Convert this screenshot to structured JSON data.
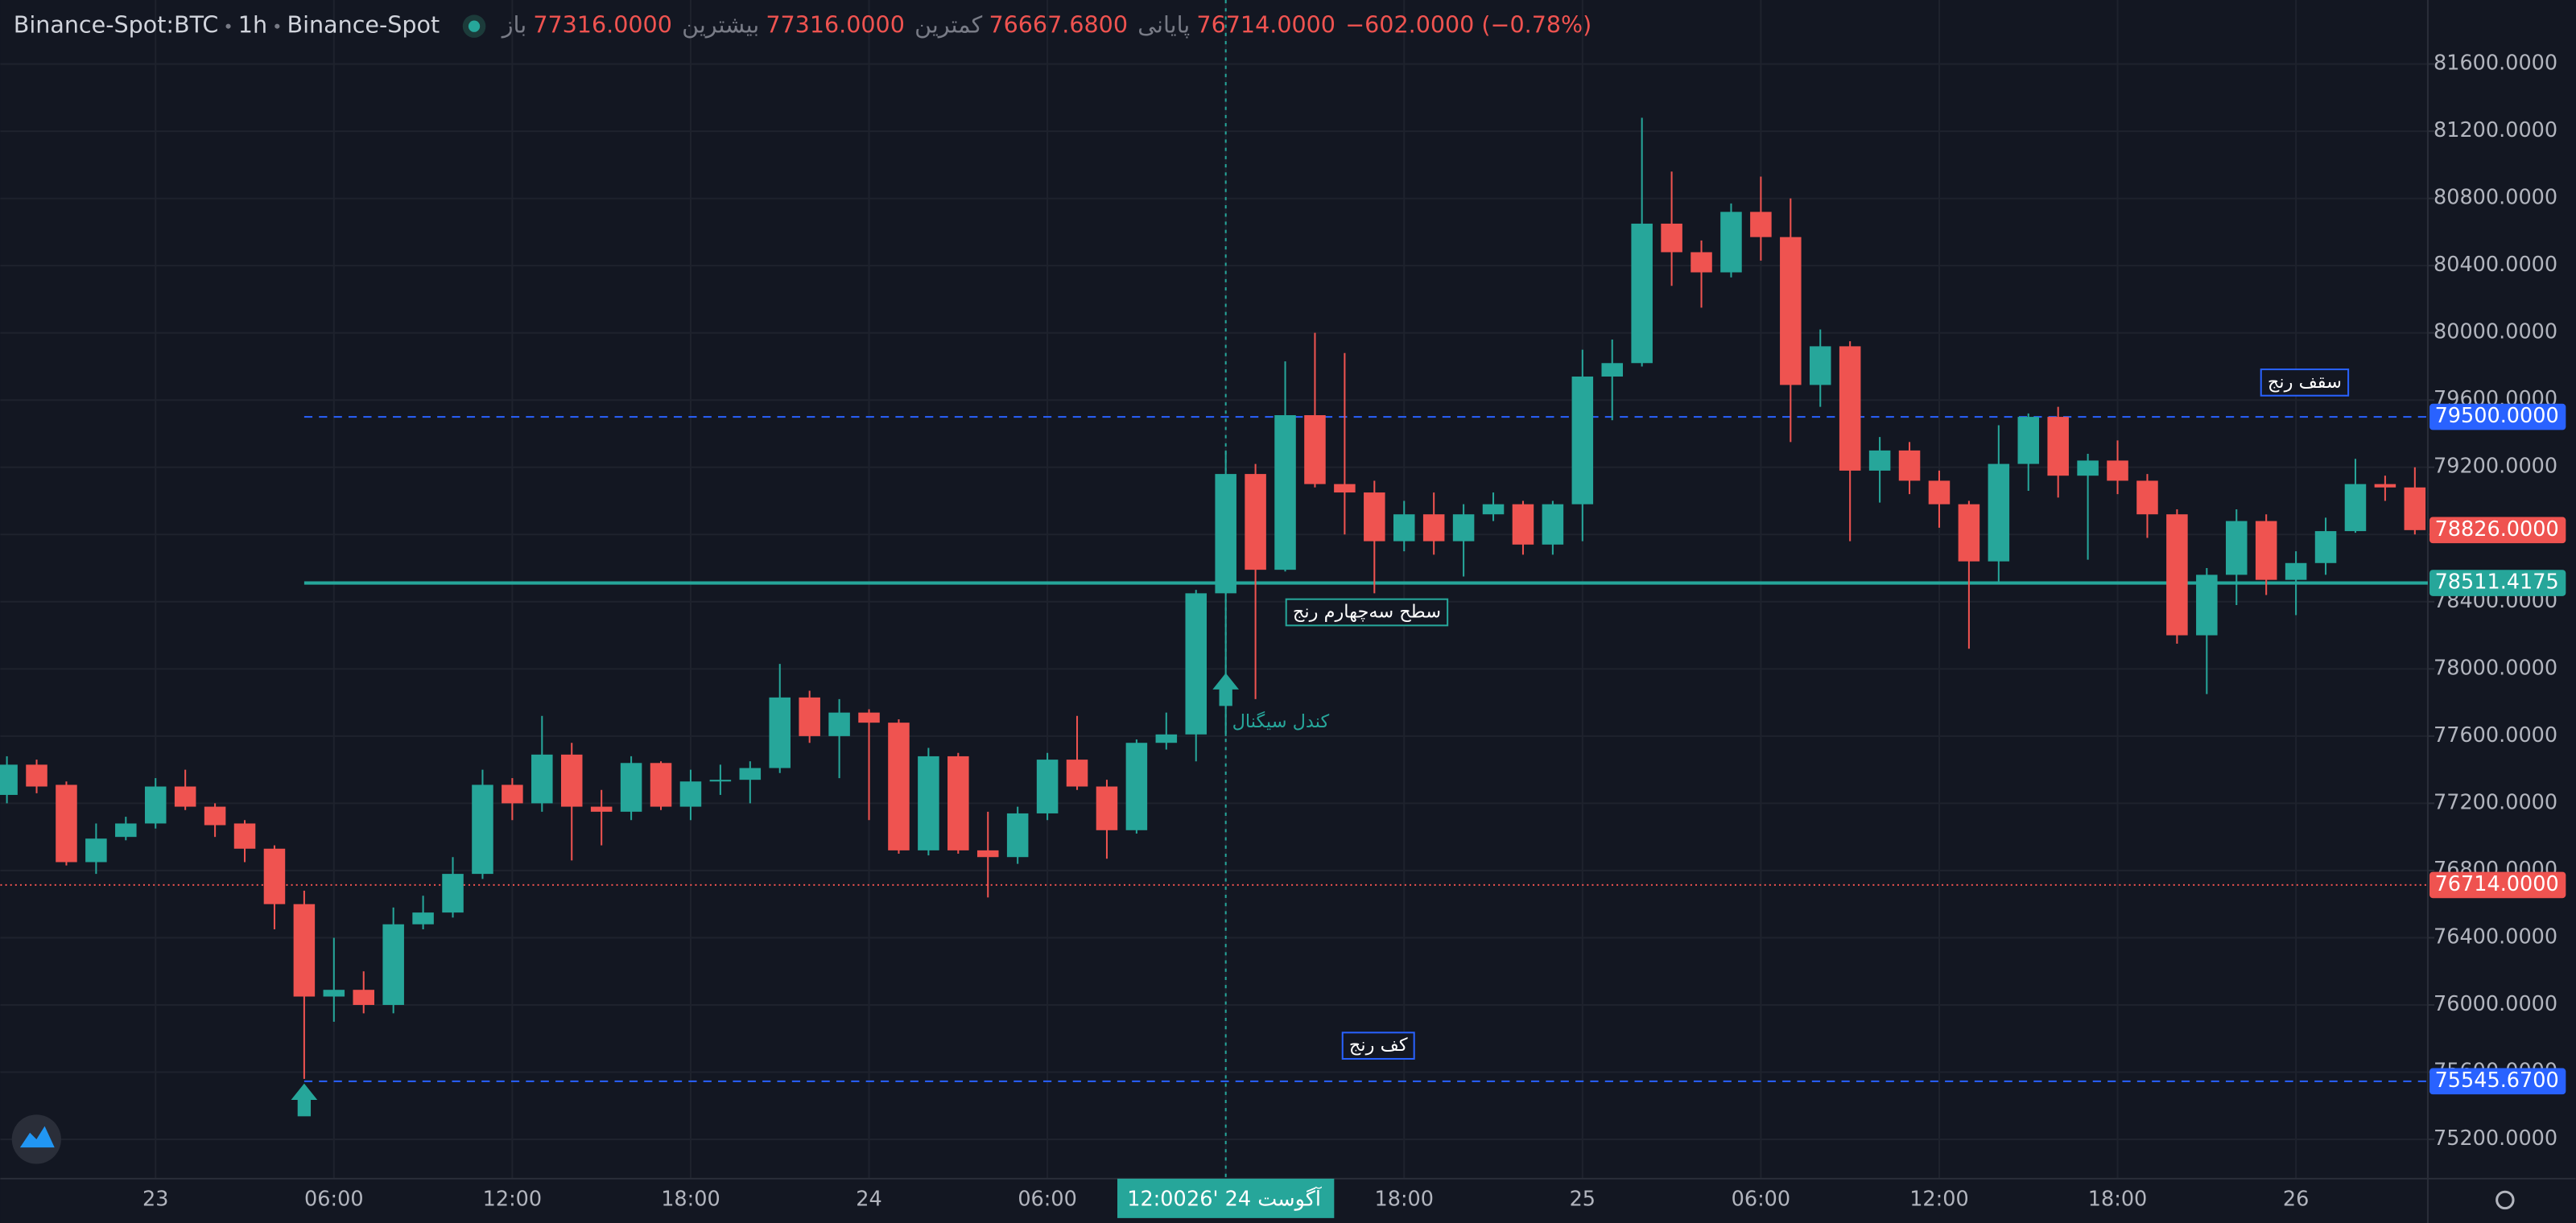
{
  "header": {
    "symbol": "Binance-Spot:BTC",
    "interval": "1h",
    "exchange": "Binance-Spot",
    "ohlc": [
      {
        "label": "باز",
        "value": "77316.0000"
      },
      {
        "label": "بیشترین",
        "value": "77316.0000"
      },
      {
        "label": "کمترین",
        "value": "76667.6800"
      },
      {
        "label": "پایانی",
        "value": "76714.0000"
      }
    ],
    "change": "−602.0000 (−0.78%)"
  },
  "chart_data": {
    "type": "candlestick",
    "up_color": "#26a69a",
    "down_color": "#ef5350",
    "grid": true,
    "categories": [
      null,
      null,
      null,
      null,
      null,
      "23",
      null,
      null,
      null,
      null,
      null,
      "06:00",
      null,
      null,
      null,
      null,
      null,
      "12:00",
      null,
      null,
      null,
      null,
      null,
      "18:00",
      null,
      null,
      null,
      null,
      null,
      "24",
      null,
      null,
      null,
      null,
      null,
      "06:00",
      null,
      null,
      null,
      null,
      null,
      "12:00",
      null,
      null,
      null,
      null,
      null,
      "18:00",
      null,
      null,
      null,
      null,
      null,
      "25",
      null,
      null,
      null,
      null,
      null,
      "06:00",
      null,
      null,
      null,
      null,
      null,
      "12:00",
      null,
      null,
      null,
      null,
      null,
      "18:00",
      null,
      null,
      null,
      null,
      null,
      "26",
      null,
      null,
      null,
      null
    ],
    "open": [
      77250,
      77430,
      77310,
      76850,
      77000,
      77080,
      77300,
      77180,
      77080,
      76930,
      76600,
      76050,
      76090,
      76000,
      76480,
      76550,
      76780,
      77310,
      77200,
      77490,
      77180,
      77150,
      77440,
      77180,
      77330,
      77340,
      77410,
      77830,
      77600,
      77740,
      77680,
      76920,
      77480,
      76920,
      76880,
      77140,
      77460,
      77300,
      77040,
      77560,
      77610,
      78450,
      79160,
      78590,
      79510,
      79100,
      79050,
      78760,
      78920,
      78760,
      78920,
      78980,
      78740,
      78980,
      79740,
      79820,
      80650,
      80480,
      80360,
      80720,
      80570,
      79690,
      79920,
      79180,
      79300,
      79120,
      78980,
      78640,
      79220,
      79500,
      79150,
      79240,
      79120,
      78920,
      78200,
      78560,
      78880,
      78530,
      78630,
      78820,
      79100,
      79080
    ],
    "high": [
      77480,
      77460,
      77330,
      77080,
      77120,
      77350,
      77400,
      77200,
      77100,
      76950,
      76680,
      76400,
      76200,
      76580,
      76650,
      76880,
      77400,
      77350,
      77720,
      77560,
      77280,
      77480,
      77450,
      77400,
      77430,
      77450,
      78030,
      77870,
      77820,
      77760,
      77700,
      77530,
      77500,
      77150,
      77180,
      77500,
      77720,
      77340,
      77580,
      77740,
      78470,
      79300,
      79220,
      79830,
      80000,
      79880,
      79120,
      79000,
      79050,
      78980,
      79050,
      79000,
      79000,
      79900,
      79960,
      81280,
      80960,
      80550,
      80770,
      80930,
      80800,
      80020,
      79950,
      79380,
      79350,
      79180,
      79000,
      79450,
      79520,
      79560,
      79280,
      79360,
      79160,
      78950,
      78600,
      78950,
      78920,
      78700,
      78900,
      79250,
      79150,
      79200
    ],
    "low": [
      77200,
      77260,
      76830,
      76780,
      76980,
      77050,
      77160,
      77000,
      76850,
      76450,
      75560,
      75900,
      75950,
      75950,
      76450,
      76520,
      76750,
      77100,
      77150,
      76860,
      76950,
      77100,
      77160,
      77100,
      77250,
      77200,
      77380,
      77560,
      77350,
      77100,
      76900,
      76890,
      76900,
      76640,
      76840,
      77100,
      77280,
      76870,
      77020,
      77520,
      77450,
      77600,
      77820,
      78580,
      79080,
      78800,
      78450,
      78700,
      78680,
      78550,
      78880,
      78680,
      78680,
      78760,
      79480,
      79800,
      80280,
      80150,
      80330,
      80430,
      79350,
      79560,
      78760,
      78990,
      79040,
      78840,
      78120,
      78520,
      79060,
      79020,
      78650,
      79040,
      78780,
      78150,
      77850,
      78380,
      78440,
      78320,
      78560,
      78810,
      79000,
      78800
    ],
    "close": [
      77430,
      77300,
      76850,
      76990,
      77080,
      77300,
      77180,
      77070,
      76930,
      76600,
      76050,
      76090,
      76000,
      76480,
      76550,
      76780,
      77310,
      77200,
      77490,
      77180,
      77150,
      77440,
      77180,
      77330,
      77340,
      77410,
      77830,
      77600,
      77740,
      77680,
      76920,
      77480,
      76920,
      76880,
      77140,
      77460,
      77300,
      77040,
      77560,
      77610,
      78450,
      79160,
      78590,
      79510,
      79100,
      79050,
      78760,
      78920,
      78760,
      78920,
      78980,
      78740,
      78980,
      79740,
      79820,
      80650,
      80480,
      80360,
      80720,
      80570,
      79690,
      79920,
      79180,
      79300,
      79120,
      78980,
      78640,
      79220,
      79500,
      79150,
      79240,
      79120,
      78920,
      78200,
      78560,
      78880,
      78530,
      78630,
      78820,
      79100,
      79080,
      78826
    ],
    "ylim": [
      74966,
      81981
    ],
    "yticks": [
      {
        "value": 75200,
        "label": "75200.0000"
      },
      {
        "value": 75600,
        "label": "75600.0000"
      },
      {
        "value": 76000,
        "label": "76000.0000"
      },
      {
        "value": 76400,
        "label": "76400.0000"
      },
      {
        "value": 76800,
        "label": "76800.0000"
      },
      {
        "value": 77200,
        "label": "77200.0000"
      },
      {
        "value": 77600,
        "label": "77600.0000"
      },
      {
        "value": 78000,
        "label": "78000.0000"
      },
      {
        "value": 78400,
        "label": "78400.0000"
      },
      {
        "value": 78800,
        "label": "78800.0000"
      },
      {
        "value": 79200,
        "label": "79200.0000"
      },
      {
        "value": 79600,
        "label": "79600.0000"
      },
      {
        "value": 80000,
        "label": "80000.0000"
      },
      {
        "value": 80400,
        "label": "80400.0000"
      },
      {
        "value": 80800,
        "label": "80800.0000"
      },
      {
        "value": 81200,
        "label": "81200.0000"
      },
      {
        "value": 81600,
        "label": "81600.0000"
      }
    ],
    "levels": [
      {
        "value": 76714,
        "label": "76714.0000",
        "color": "#ef5350",
        "style": "dotted"
      },
      {
        "value": 79500,
        "label": "79500.0000",
        "color": "#2962ff",
        "style": "dashed"
      },
      {
        "value": 78511.4175,
        "label": "78511.4175",
        "color": "#26a69a",
        "style": "solid"
      },
      {
        "value": 75545.67,
        "label": "75545.6700",
        "color": "#2962ff",
        "style": "dashed"
      }
    ],
    "last_price": {
      "value": 78826,
      "label": "78826.0000",
      "color": "#ef5350"
    },
    "crosshair_date": "26' آگوست 24",
    "annotations": [
      {
        "text": "سقف رنج",
        "color": "#2962ff"
      },
      {
        "text": "سطح سه‌چهارم رنج",
        "color": "#26a69a"
      },
      {
        "text": "کف رنج",
        "color": "#2962ff"
      },
      {
        "text": "کندل سیگنال",
        "color": "#26a69a"
      }
    ]
  }
}
